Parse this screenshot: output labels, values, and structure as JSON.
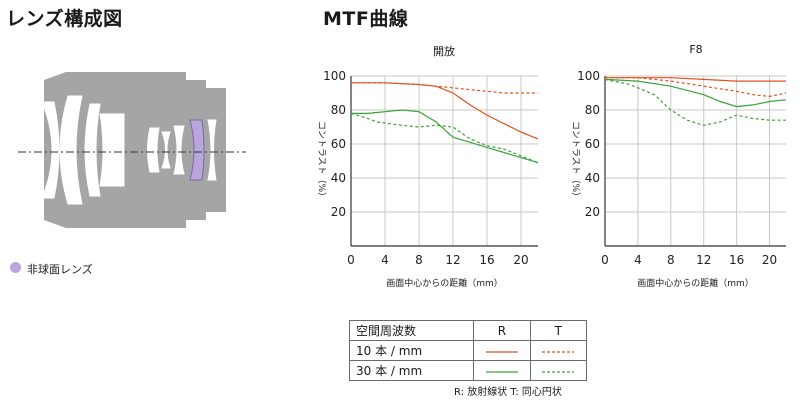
{
  "lens": {
    "title": "レンズ構成図",
    "legend_label": "非球面レンズ",
    "aspherical_color": "#b8a6dc",
    "barrel_color": "#a5a5a5"
  },
  "mtf_title": "MTF曲線",
  "colors": {
    "R": "#e0501e",
    "T": "#3aa33a"
  },
  "chart_data": [
    {
      "type": "line",
      "title": "開放",
      "xlabel": "画面中心からの距離（mm）",
      "ylabel": "コントラスト（%）",
      "xlim": [
        0,
        22
      ],
      "ylim": [
        0,
        100
      ],
      "xticks": [
        0,
        4,
        8,
        12,
        16,
        20
      ],
      "yticks": [
        20,
        40,
        60,
        80,
        100
      ],
      "grid": true,
      "series": [
        {
          "freq": "10 本 / mm",
          "orient": "R",
          "x": [
            0,
            4,
            8,
            10,
            12,
            14,
            16,
            18,
            20,
            22
          ],
          "values": [
            96,
            96,
            95,
            94,
            90,
            83,
            77,
            72,
            67,
            63
          ]
        },
        {
          "freq": "10 本 / mm",
          "orient": "T",
          "x": [
            0,
            4,
            8,
            12,
            14,
            16,
            18,
            20,
            22
          ],
          "values": [
            96,
            96,
            95,
            93,
            92,
            91,
            90,
            90,
            90
          ]
        },
        {
          "freq": "30 本 / mm",
          "orient": "R",
          "x": [
            0,
            2,
            4,
            6,
            8,
            10,
            12,
            14,
            16,
            18,
            20,
            22
          ],
          "values": [
            78,
            78,
            79,
            80,
            79,
            73,
            64,
            61,
            58,
            55,
            52,
            49
          ]
        },
        {
          "freq": "30 本 / mm",
          "orient": "T",
          "x": [
            0,
            2,
            3,
            6,
            8,
            10,
            12,
            14,
            16,
            18,
            20,
            22
          ],
          "values": [
            78,
            75,
            73,
            71,
            70,
            71,
            70,
            63,
            59,
            57,
            53,
            49
          ]
        }
      ]
    },
    {
      "type": "line",
      "title": "F8",
      "xlabel": "画面中心からの距離（mm）",
      "ylabel": "コントラスト（%）",
      "xlim": [
        0,
        22
      ],
      "ylim": [
        0,
        100
      ],
      "xticks": [
        0,
        4,
        8,
        12,
        16,
        20
      ],
      "yticks": [
        20,
        40,
        60,
        80,
        100
      ],
      "grid": true,
      "series": [
        {
          "freq": "10 本 / mm",
          "orient": "R",
          "x": [
            0,
            8,
            12,
            16,
            20,
            22
          ],
          "values": [
            99,
            99,
            98,
            97,
            97,
            97
          ]
        },
        {
          "freq": "10 本 / mm",
          "orient": "T",
          "x": [
            0,
            4,
            8,
            12,
            16,
            18,
            20,
            22
          ],
          "values": [
            99,
            99,
            97,
            94,
            91,
            89,
            88,
            90
          ]
        },
        {
          "freq": "30 本 / mm",
          "orient": "R",
          "x": [
            0,
            4,
            8,
            12,
            14,
            16,
            18,
            20,
            22
          ],
          "values": [
            98,
            97,
            94,
            89,
            85,
            82,
            83,
            85,
            86
          ]
        },
        {
          "freq": "30 本 / mm",
          "orient": "T",
          "x": [
            0,
            3,
            6,
            8,
            10,
            12,
            14,
            16,
            18,
            20,
            22
          ],
          "values": [
            98,
            95,
            89,
            80,
            74,
            71,
            73,
            77,
            75,
            74,
            74
          ]
        }
      ]
    }
  ],
  "legend_table": {
    "header": {
      "label": "空間周波数",
      "r": "R",
      "t": "T"
    },
    "rows": [
      {
        "label": "10 本 / mm"
      },
      {
        "label": "30 本 / mm"
      }
    ],
    "note": "R: 放射線状  T: 同心円状"
  }
}
